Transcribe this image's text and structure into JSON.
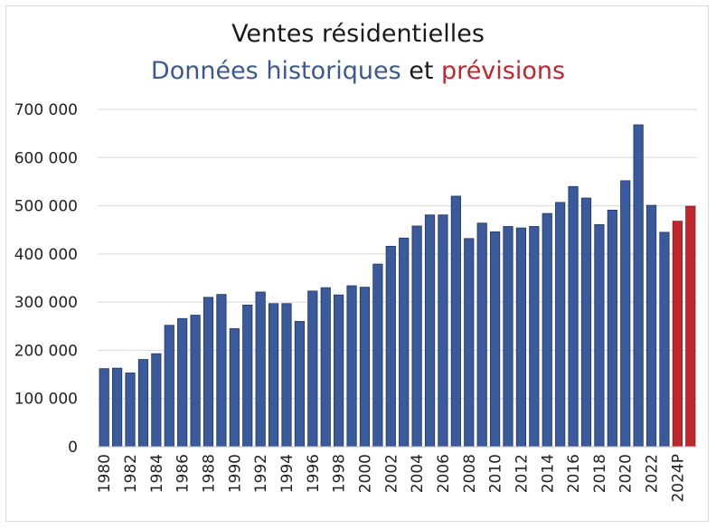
{
  "chart_data": {
    "type": "bar",
    "title": "Ventes résidentielles",
    "subtitle": {
      "part1": "Données historiques",
      "part2": "et",
      "part3": "prévisions"
    },
    "xlabel": "",
    "ylabel": "",
    "ylim": [
      0,
      700000
    ],
    "yticks": [
      0,
      100000,
      200000,
      300000,
      400000,
      500000,
      600000,
      700000
    ],
    "ytick_labels": [
      "0",
      "100 000",
      "200 000",
      "300 000",
      "400 000",
      "500 000",
      "600 000",
      "700 000"
    ],
    "grid": true,
    "colors": {
      "historical": "#3a5a9b",
      "forecast": "#c0272d",
      "grid": "#d9d9d9"
    },
    "categories": [
      "1980",
      "1981",
      "1982",
      "1983",
      "1984",
      "1985",
      "1986",
      "1987",
      "1988",
      "1989",
      "1990",
      "1991",
      "1992",
      "1993",
      "1994",
      "1995",
      "1996",
      "1997",
      "1998",
      "1999",
      "2000",
      "2001",
      "2002",
      "2003",
      "2004",
      "2005",
      "2006",
      "2007",
      "2008",
      "2009",
      "2010",
      "2011",
      "2012",
      "2013",
      "2014",
      "2015",
      "2016",
      "2017",
      "2018",
      "2019",
      "2020",
      "2021",
      "2022",
      "2023",
      "2024P",
      "2025P"
    ],
    "xtick_labels": [
      "1980",
      "",
      "1982",
      "",
      "1984",
      "",
      "1986",
      "",
      "1988",
      "",
      "1990",
      "",
      "1992",
      "",
      "1994",
      "",
      "1996",
      "",
      "1998",
      "",
      "2000",
      "",
      "2002",
      "",
      "2004",
      "",
      "2006",
      "",
      "2008",
      "",
      "2010",
      "",
      "2012",
      "",
      "2014",
      "",
      "2016",
      "",
      "2018",
      "",
      "2020",
      "",
      "2022",
      "",
      "2024P",
      ""
    ],
    "values": [
      162000,
      163000,
      153000,
      181000,
      193000,
      252000,
      266000,
      273000,
      310000,
      316000,
      245000,
      294000,
      321000,
      297000,
      297000,
      260000,
      323000,
      330000,
      315000,
      334000,
      331000,
      379000,
      416000,
      433000,
      458000,
      481000,
      481000,
      520000,
      432000,
      464000,
      446000,
      457000,
      454000,
      457000,
      484000,
      507000,
      540000,
      516000,
      461000,
      491000,
      552000,
      668000,
      501000,
      445000,
      468000,
      499000
    ],
    "series_kind": [
      "h",
      "h",
      "h",
      "h",
      "h",
      "h",
      "h",
      "h",
      "h",
      "h",
      "h",
      "h",
      "h",
      "h",
      "h",
      "h",
      "h",
      "h",
      "h",
      "h",
      "h",
      "h",
      "h",
      "h",
      "h",
      "h",
      "h",
      "h",
      "h",
      "h",
      "h",
      "h",
      "h",
      "h",
      "h",
      "h",
      "h",
      "h",
      "h",
      "h",
      "h",
      "h",
      "h",
      "h",
      "f",
      "f"
    ]
  }
}
